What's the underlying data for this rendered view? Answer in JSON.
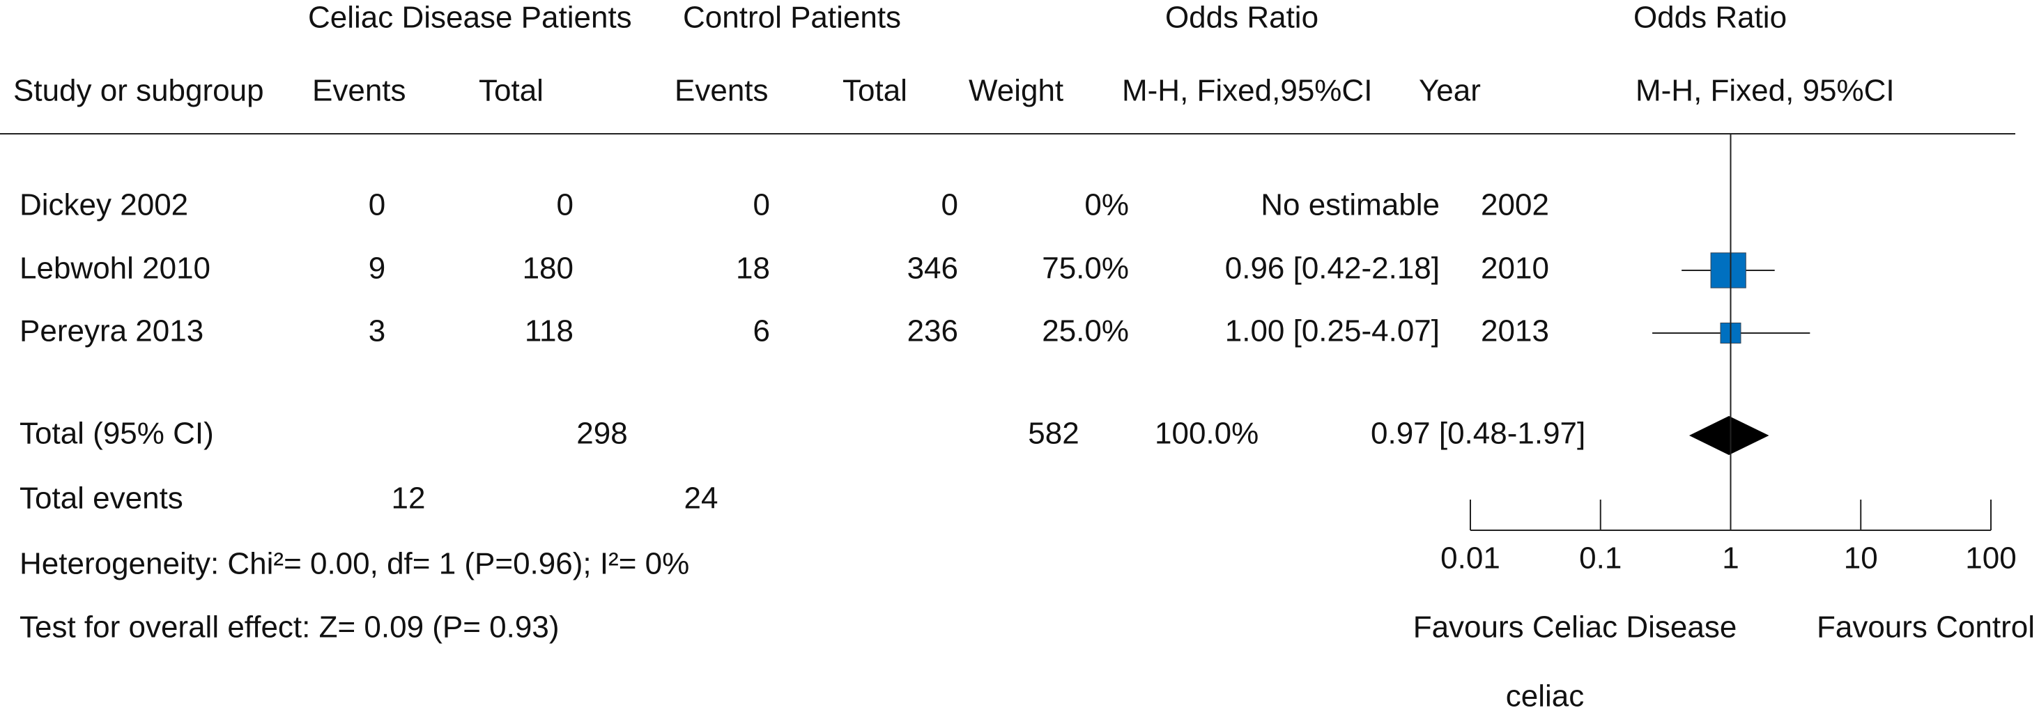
{
  "chart_data": {
    "type": "forest",
    "header_groups": [
      "Celiac Disease Patients",
      "Control Patients",
      "Odds Ratio",
      "Odds Ratio"
    ],
    "columns": [
      "Study or subgroup",
      "Events",
      "Total",
      "Events",
      "Total",
      "Weight",
      "M-H, Fixed,95%CI",
      "Year",
      "M-H, Fixed, 95%CI"
    ],
    "rows": [
      {
        "study": "Dickey 2002",
        "ce_events": 0,
        "ce_total": 0,
        "co_events": 0,
        "co_total": 0,
        "weight_label": "0%",
        "or_label": "No estimable",
        "year": 2002
      },
      {
        "study": "Lebwohl 2010",
        "ce_events": 9,
        "ce_total": 180,
        "co_events": 18,
        "co_total": 346,
        "weight": 75,
        "weight_label": "75.0%",
        "or": 0.96,
        "lo": 0.42,
        "hi": 2.18,
        "or_label": "0.96 [0.42-2.18]",
        "year": 2010
      },
      {
        "study": "Pereyra 2013",
        "ce_events": 3,
        "ce_total": 118,
        "co_events": 6,
        "co_total": 236,
        "weight": 25,
        "weight_label": "25.0%",
        "or": 1.0,
        "lo": 0.25,
        "hi": 4.07,
        "or_label": "1.00 [0.25-4.07]",
        "year": 2013
      }
    ],
    "total": {
      "label": "Total (95% CI)",
      "ce_total": 298,
      "co_total": 582,
      "weight_label": "100.0%",
      "or": 0.97,
      "lo": 0.48,
      "hi": 1.97,
      "or_label": "0.97 [0.48-1.97]"
    },
    "total_events": {
      "label": "Total events",
      "ce_events": 12,
      "co_events": 24
    },
    "heterogeneity": "Heterogeneity: Chi²= 0.00, df= 1 (P=0.96); I²= 0%",
    "overall_effect": "Test for overall effect: Z= 0.09 (P= 0.93)",
    "xlim": [
      0.01,
      100
    ],
    "xticks": [
      0.01,
      0.1,
      1,
      10,
      100
    ],
    "log_scale": true,
    "reference_x": 1,
    "favours_left": "Favours Celiac Disease",
    "favours_right": "Favours Control",
    "xlabel": "celiac",
    "color": "#0070c0",
    "total_color": "#000000"
  }
}
